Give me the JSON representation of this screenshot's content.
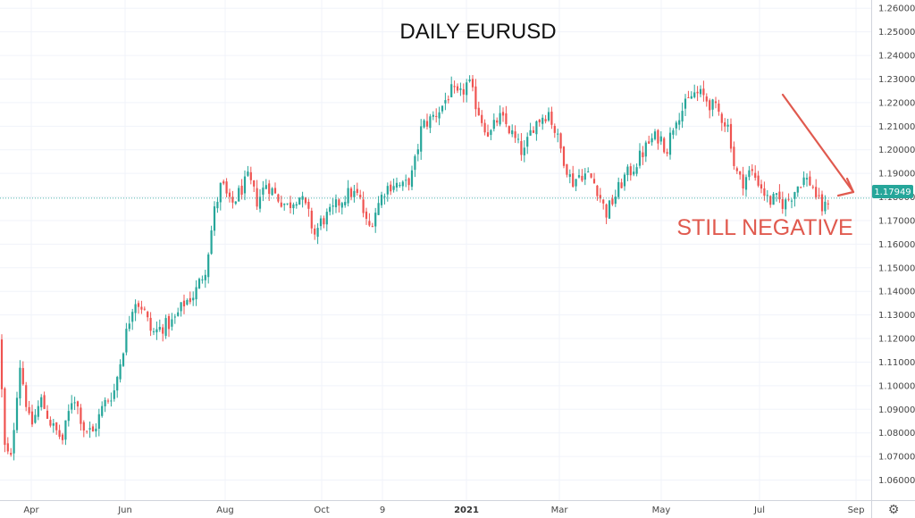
{
  "chart_data": {
    "type": "candlestick",
    "title": "DAILY EURUSD",
    "annotation": "STILL NEGATIVE",
    "last_price": 1.17949,
    "last_price_label": "1.17949",
    "ylim": [
      1.0515,
      1.2635
    ],
    "y_ticks": [
      "1.06000",
      "1.07000",
      "1.08000",
      "1.09000",
      "1.10000",
      "1.11000",
      "1.12000",
      "1.13000",
      "1.14000",
      "1.15000",
      "1.16000",
      "1.17000",
      "1.18000",
      "1.19000",
      "1.20000",
      "1.21000",
      "1.22000",
      "1.23000",
      "1.24000",
      "1.25000",
      "1.26000"
    ],
    "x_ticks": [
      {
        "label": "Apr",
        "bold": false
      },
      {
        "label": "Jun",
        "bold": false
      },
      {
        "label": "Aug",
        "bold": false
      },
      {
        "label": "Oct",
        "bold": false
      },
      {
        "label": "9",
        "bold": false
      },
      {
        "label": "2021",
        "bold": true
      },
      {
        "label": "Mar",
        "bold": false
      },
      {
        "label": "May",
        "bold": false
      },
      {
        "label": "Jul",
        "bold": false
      },
      {
        "label": "Sep",
        "bold": false
      }
    ],
    "close_path": [
      [
        0,
        1.12
      ],
      [
        4,
        1.075
      ],
      [
        12,
        1.068
      ],
      [
        22,
        1.11
      ],
      [
        34,
        1.082
      ],
      [
        46,
        1.094
      ],
      [
        58,
        1.083
      ],
      [
        70,
        1.077
      ],
      [
        82,
        1.097
      ],
      [
        94,
        1.082
      ],
      [
        104,
        1.08
      ],
      [
        116,
        1.092
      ],
      [
        128,
        1.098
      ],
      [
        140,
        1.12
      ],
      [
        150,
        1.137
      ],
      [
        160,
        1.133
      ],
      [
        170,
        1.122
      ],
      [
        182,
        1.125
      ],
      [
        194,
        1.127
      ],
      [
        206,
        1.135
      ],
      [
        218,
        1.139
      ],
      [
        230,
        1.15
      ],
      [
        240,
        1.174
      ],
      [
        248,
        1.186
      ],
      [
        258,
        1.176
      ],
      [
        268,
        1.182
      ],
      [
        278,
        1.188
      ],
      [
        288,
        1.178
      ],
      [
        298,
        1.186
      ],
      [
        310,
        1.18
      ],
      [
        322,
        1.176
      ],
      [
        334,
        1.181
      ],
      [
        344,
        1.174
      ],
      [
        352,
        1.164
      ],
      [
        360,
        1.17
      ],
      [
        370,
        1.173
      ],
      [
        380,
        1.178
      ],
      [
        392,
        1.182
      ],
      [
        402,
        1.18
      ],
      [
        412,
        1.166
      ],
      [
        420,
        1.174
      ],
      [
        430,
        1.183
      ],
      [
        440,
        1.186
      ],
      [
        452,
        1.184
      ],
      [
        462,
        1.19
      ],
      [
        472,
        1.21
      ],
      [
        482,
        1.213
      ],
      [
        494,
        1.218
      ],
      [
        504,
        1.225
      ],
      [
        514,
        1.222
      ],
      [
        524,
        1.229
      ],
      [
        532,
        1.22
      ],
      [
        540,
        1.212
      ],
      [
        548,
        1.206
      ],
      [
        558,
        1.214
      ],
      [
        568,
        1.21
      ],
      [
        578,
        1.203
      ],
      [
        586,
        1.198
      ],
      [
        596,
        1.21
      ],
      [
        606,
        1.214
      ],
      [
        614,
        1.216
      ],
      [
        622,
        1.207
      ],
      [
        632,
        1.195
      ],
      [
        640,
        1.186
      ],
      [
        650,
        1.19
      ],
      [
        660,
        1.189
      ],
      [
        668,
        1.184
      ],
      [
        678,
        1.173
      ],
      [
        688,
        1.18
      ],
      [
        698,
        1.188
      ],
      [
        708,
        1.192
      ],
      [
        718,
        1.198
      ],
      [
        728,
        1.204
      ],
      [
        738,
        1.206
      ],
      [
        746,
        1.2
      ],
      [
        756,
        1.214
      ],
      [
        766,
        1.218
      ],
      [
        776,
        1.224
      ],
      [
        786,
        1.223
      ],
      [
        796,
        1.219
      ],
      [
        806,
        1.215
      ],
      [
        816,
        1.209
      ],
      [
        822,
        1.192
      ],
      [
        830,
        1.186
      ],
      [
        840,
        1.191
      ],
      [
        850,
        1.186
      ],
      [
        860,
        1.178
      ],
      [
        868,
        1.179
      ],
      [
        878,
        1.177
      ],
      [
        888,
        1.182
      ],
      [
        898,
        1.188
      ],
      [
        908,
        1.186
      ],
      [
        916,
        1.178
      ],
      [
        922,
        1.174
      ],
      [
        927,
        1.1795
      ]
    ],
    "arrow_color": "#e05a4f",
    "up_color": "#26a69a",
    "down_color": "#ef5350",
    "grid": true,
    "settings_icon": "gear-icon"
  }
}
